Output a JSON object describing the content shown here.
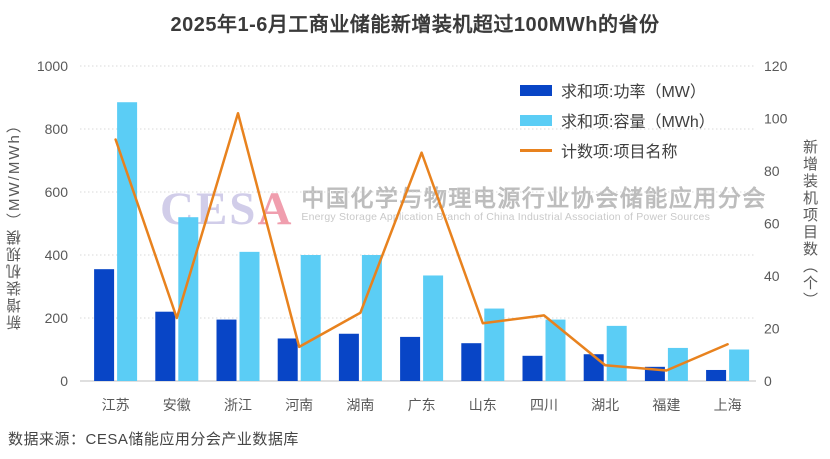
{
  "title": "2025年1-6月工商业储能新增装机超过100MWh的省份",
  "source": "数据来源：CESA储能应用分会产业数据库",
  "watermark": {
    "logo_ces": "CES",
    "logo_a": "A",
    "org_cn": "中国化学与物理电源行业协会储能应用分会",
    "org_en": "Energy Storage Application Branch of China Industrial Association of Power Sources"
  },
  "left_axis": {
    "title": "新增装机规模（MW/MWh）",
    "min": 0,
    "max": 1000,
    "step": 200
  },
  "right_axis": {
    "title": "新增装机项目数（个）",
    "min": 0,
    "max": 120,
    "step": 20
  },
  "legend": {
    "items": [
      {
        "label": "求和项:功率（MW）",
        "type": "bar",
        "color": "#0845c6"
      },
      {
        "label": "求和项:容量（MWh）",
        "type": "bar",
        "color": "#5bcdf5"
      },
      {
        "label": "计数项:项目名称",
        "type": "line",
        "color": "#e8821e"
      }
    ]
  },
  "colors": {
    "bar_power": "#0845c6",
    "bar_capacity": "#5bcdf5",
    "line_count": "#e8821e",
    "gridline": "#d9d9d9",
    "axis_line": "#bfbfbf",
    "tick_label": "#595959",
    "category_label": "#595959"
  },
  "chart_data": {
    "type": "bar",
    "combo": "clustered bars (left axis) + line (right axis)",
    "title": "2025年1-6月工商业储能新增装机超过100MWh的省份",
    "categories": [
      "江苏",
      "安徽",
      "浙江",
      "河南",
      "湖南",
      "广东",
      "山东",
      "四川",
      "湖北",
      "福建",
      "上海"
    ],
    "series": [
      {
        "name": "求和项:功率（MW）",
        "type": "bar",
        "axis": "left",
        "color": "#0845c6",
        "values": [
          355,
          220,
          195,
          135,
          150,
          140,
          120,
          80,
          85,
          45,
          35
        ]
      },
      {
        "name": "求和项:容量（MWh）",
        "type": "bar",
        "axis": "left",
        "color": "#5bcdf5",
        "values": [
          885,
          520,
          410,
          400,
          400,
          335,
          230,
          195,
          175,
          105,
          100
        ]
      },
      {
        "name": "计数项:项目名称",
        "type": "line",
        "axis": "right",
        "color": "#e8821e",
        "values": [
          92,
          24,
          102,
          13,
          26,
          87,
          22,
          25,
          6,
          4,
          14
        ]
      }
    ],
    "xlabel": "",
    "ylabel_left": "新增装机规模（MW/MWh）",
    "ylabel_right": "新增装机项目数（个）",
    "left_ylim": [
      0,
      1000
    ],
    "right_ylim": [
      0,
      120
    ],
    "grid": "horizontal dotted",
    "legend_position": "top-right inside plot"
  }
}
